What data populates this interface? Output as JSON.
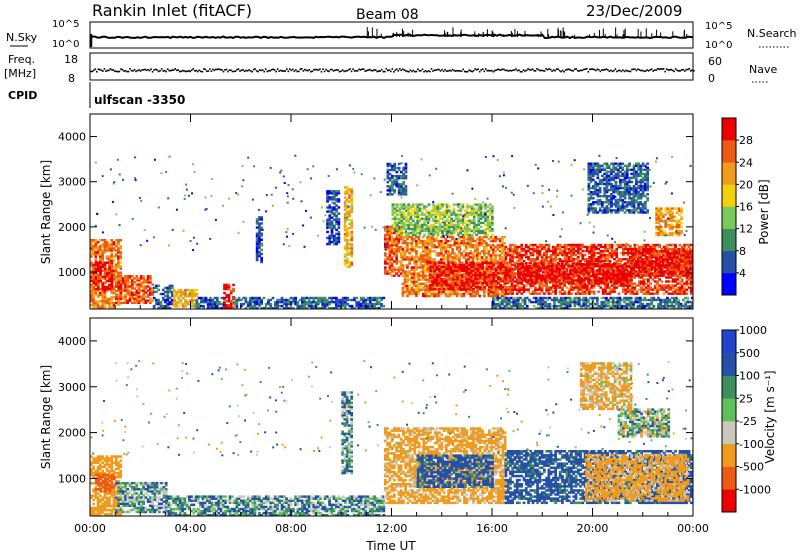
{
  "header": {
    "station": "Rankin Inlet (fitACF)",
    "beam": "Beam 08",
    "date": "23/Dec/2009"
  },
  "summary": {
    "nsky_label": "N.Sky",
    "nsky_ticks": [
      "10^5",
      "10^0"
    ],
    "nsearch_label": "N.Search",
    "nsearch_ticks": [
      "10^5",
      "10^0"
    ],
    "freq_label": "Freq.",
    "freq_unit": "[MHz]",
    "freq_ticks": [
      "18",
      "8"
    ],
    "nave_label": "Nave",
    "nave_ticks": [
      "60",
      "0"
    ],
    "cpid_label": "CPID",
    "cpid_value": "ulfscan -3350"
  },
  "colors": {
    "power": [
      "#0000ff",
      "#264fa8",
      "#3e8f5e",
      "#7cc85a",
      "#f0d20a",
      "#f09a1e",
      "#ee5a14",
      "#ee0000"
    ],
    "velocity": [
      "#ee0000",
      "#ee5a14",
      "#f09a1e",
      "#c8c8c0",
      "#5fc05a",
      "#3e8f5e",
      "#264fa8",
      "#2244cc"
    ]
  },
  "chart_data": [
    {
      "type": "heatmap",
      "name": "power",
      "ylabel": "Slant Range [km]",
      "xlabel": "",
      "xlim": [
        "00:00",
        "24:00"
      ],
      "ylim": [
        180,
        4500
      ],
      "y_ticks": [
        "1000",
        "2000",
        "3000",
        "4000"
      ],
      "colorbar_label": "Power [dB]",
      "colorbar_ticks": [
        "4",
        "8",
        "12",
        "16",
        "20",
        "24",
        "28"
      ],
      "colorbar_range": [
        0,
        32
      ],
      "grid": false,
      "regions": [
        {
          "t0": 0.0,
          "t1": 1.2,
          "r0": 200,
          "r1": 1700,
          "level": 24
        },
        {
          "t0": 0.1,
          "t1": 0.9,
          "r0": 600,
          "r1": 1200,
          "level": 30
        },
        {
          "t0": 1.0,
          "t1": 2.5,
          "r0": 300,
          "r1": 900,
          "level": 26
        },
        {
          "t0": 2.5,
          "t1": 3.3,
          "r0": 180,
          "r1": 700,
          "level": 6
        },
        {
          "t0": 3.3,
          "t1": 4.2,
          "r0": 220,
          "r1": 600,
          "level": 20
        },
        {
          "t0": 4.2,
          "t1": 5.3,
          "r0": 180,
          "r1": 450,
          "level": 6
        },
        {
          "t0": 5.3,
          "t1": 5.7,
          "r0": 200,
          "r1": 700,
          "level": 30
        },
        {
          "t0": 5.7,
          "t1": 11.7,
          "r0": 180,
          "r1": 450,
          "level": 7
        },
        {
          "t0": 6.6,
          "t1": 6.8,
          "r0": 1200,
          "r1": 2200,
          "level": 6
        },
        {
          "t0": 9.4,
          "t1": 9.9,
          "r0": 1600,
          "r1": 2800,
          "level": 6
        },
        {
          "t0": 10.1,
          "t1": 10.4,
          "r0": 1100,
          "r1": 2900,
          "level": 20
        },
        {
          "t0": 11.7,
          "t1": 12.4,
          "r0": 900,
          "r1": 2000,
          "level": 26
        },
        {
          "t0": 12.4,
          "t1": 16.5,
          "r0": 450,
          "r1": 1800,
          "level": 24
        },
        {
          "t0": 13.5,
          "t1": 16.8,
          "r0": 600,
          "r1": 1200,
          "level": 30
        },
        {
          "t0": 12.0,
          "t1": 16.0,
          "r0": 1800,
          "r1": 2500,
          "level": 14
        },
        {
          "t0": 11.8,
          "t1": 12.6,
          "r0": 2700,
          "r1": 3400,
          "level": 7
        },
        {
          "t0": 16.5,
          "t1": 24.0,
          "r0": 500,
          "r1": 1600,
          "level": 28
        },
        {
          "t0": 17.0,
          "t1": 21.5,
          "r0": 750,
          "r1": 1200,
          "level": 31
        },
        {
          "t0": 21.5,
          "t1": 24.0,
          "r0": 900,
          "r1": 1500,
          "level": 30
        },
        {
          "t0": 19.8,
          "t1": 22.2,
          "r0": 2300,
          "r1": 3400,
          "level": 7
        },
        {
          "t0": 22.5,
          "t1": 23.5,
          "r0": 1800,
          "r1": 2400,
          "level": 22
        },
        {
          "t0": 16.0,
          "t1": 24.0,
          "r0": 180,
          "r1": 450,
          "level": 8
        }
      ]
    },
    {
      "type": "heatmap",
      "name": "velocity",
      "ylabel": "Slant Range [km]",
      "xlabel": "Time UT",
      "xlim": [
        "00:00",
        "24:00"
      ],
      "ylim": [
        180,
        4500
      ],
      "y_ticks": [
        "1000",
        "2000",
        "3000",
        "4000"
      ],
      "x_ticks": [
        "00:00",
        "04:00",
        "08:00",
        "12:00",
        "16:00",
        "20:00",
        "00:00"
      ],
      "colorbar_label": "Velocity [m s⁻¹]",
      "colorbar_ticks": [
        "-1000",
        "-500",
        "-100",
        "-25",
        "25",
        "100",
        "500",
        "1000"
      ],
      "grid": false,
      "regions": [
        {
          "t0": 0.0,
          "t1": 1.2,
          "r0": 200,
          "r1": 1500,
          "level": -300
        },
        {
          "t0": 0.2,
          "t1": 1.0,
          "r0": 700,
          "r1": 1100,
          "level": -800
        },
        {
          "t0": 1.0,
          "t1": 3.0,
          "r0": 250,
          "r1": 900,
          "level": 50
        },
        {
          "t0": 3.0,
          "t1": 11.7,
          "r0": 180,
          "r1": 600,
          "level": 60
        },
        {
          "t0": 10.0,
          "t1": 10.4,
          "r0": 1100,
          "r1": 2900,
          "level": 50
        },
        {
          "t0": 11.7,
          "t1": 16.5,
          "r0": 450,
          "r1": 2100,
          "level": -200
        },
        {
          "t0": 13.0,
          "t1": 16.0,
          "r0": 800,
          "r1": 1500,
          "level": 200
        },
        {
          "t0": 16.5,
          "t1": 24.0,
          "r0": 450,
          "r1": 1600,
          "level": 200
        },
        {
          "t0": 19.7,
          "t1": 23.8,
          "r0": 500,
          "r1": 1500,
          "level": -200
        },
        {
          "t0": 21.0,
          "t1": 23.0,
          "r0": 1900,
          "r1": 2500,
          "level": 0
        },
        {
          "t0": 19.5,
          "t1": 21.5,
          "r0": 2500,
          "r1": 3500,
          "level": -150
        }
      ]
    }
  ]
}
